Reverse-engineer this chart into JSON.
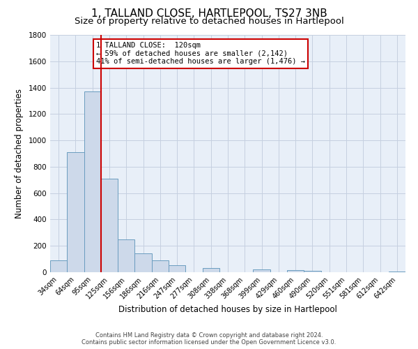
{
  "title": "1, TALLAND CLOSE, HARTLEPOOL, TS27 3NB",
  "subtitle": "Size of property relative to detached houses in Hartlepool",
  "xlabel": "Distribution of detached houses by size in Hartlepool",
  "ylabel": "Number of detached properties",
  "bar_labels": [
    "34sqm",
    "64sqm",
    "95sqm",
    "125sqm",
    "156sqm",
    "186sqm",
    "216sqm",
    "247sqm",
    "277sqm",
    "308sqm",
    "338sqm",
    "368sqm",
    "399sqm",
    "429sqm",
    "460sqm",
    "490sqm",
    "520sqm",
    "551sqm",
    "581sqm",
    "612sqm",
    "642sqm"
  ],
  "bar_values": [
    90,
    910,
    1370,
    710,
    250,
    145,
    90,
    55,
    0,
    30,
    0,
    0,
    20,
    0,
    15,
    10,
    0,
    0,
    0,
    0,
    5
  ],
  "bar_color": "#cdd9ea",
  "bar_edge_color": "#6a9cbf",
  "vline_x_index": 3,
  "vline_color": "#cc0000",
  "ylim": [
    0,
    1800
  ],
  "yticks": [
    0,
    200,
    400,
    600,
    800,
    1000,
    1200,
    1400,
    1600,
    1800
  ],
  "annotation_title": "1 TALLAND CLOSE:  120sqm",
  "annotation_line1": "← 59% of detached houses are smaller (2,142)",
  "annotation_line2": "41% of semi-detached houses are larger (1,476) →",
  "annotation_box_color": "#ffffff",
  "annotation_box_edge": "#cc0000",
  "footer_line1": "Contains HM Land Registry data © Crown copyright and database right 2024.",
  "footer_line2": "Contains public sector information licensed under the Open Government Licence v3.0.",
  "background_color": "#ffffff",
  "axes_bg_color": "#e8eff8",
  "grid_color": "#c5d0e0",
  "title_fontsize": 11,
  "subtitle_fontsize": 9.5
}
